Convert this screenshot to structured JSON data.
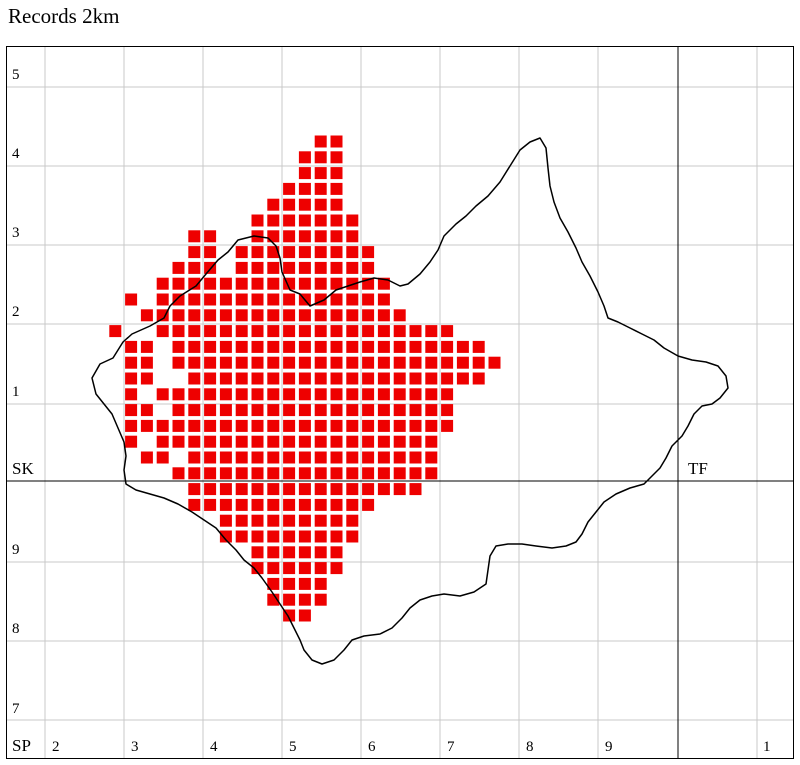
{
  "title": "Records 2km",
  "colors": {
    "record": "#ee0000",
    "grid": "#c8c8c8",
    "major_grid": "#000000",
    "boundary": "#000000"
  },
  "easting_labels": [
    "2",
    "3",
    "4",
    "5",
    "6",
    "7",
    "8",
    "9",
    "1"
  ],
  "northing_labels": [
    "5",
    "4",
    "3",
    "2",
    "1",
    "9",
    "8",
    "7"
  ],
  "zone_labels": {
    "sk": "SK",
    "tf": "TF",
    "sp": "SP"
  },
  "records_grid": [
    "..............EE..........",
    ".............EEE..........",
    ".............EEE..........",
    "............EEEE..........",
    "...........EEEEE..........",
    "..........EEEEEEE.........",
    "......EE..EEEEEEE.........",
    "......EE.EEEEEEEEE........",
    ".....EEE.EEEEEEEEE........",
    "....EEEEEEEEEEEEEEE.......",
    "..E.EEEEEEEEEEEEEEE.......",
    "...EEEEEEEEEEEEEEEEE......",
    ".E..EEEEEEEEEEEEEEEEEEE...",
    "..EE.EEEEEEEEEEEEEEEEEEEE.",
    "..EE.EEEEEEEEEEEEEEEEEEEEE",
    "..EE..EEEEEEEEEEEEEEEEEEE.",
    "..E.EEEEEEEEEEEEEEEEEEE...",
    "..EE.EEEEEEEEEEEEEEEEEE...",
    "..EEEEEEEEEEEEEEEEEEEEE...",
    "..E.EEEEEEEEEEEEEEEEEE....",
    "...EE.EEEEEEEEEEEEEEEE....",
    ".....EEEEEEEEEEEEEEEEE....",
    "......EEEEEEEEEEEEEEE.....",
    "......EEEEEEEEEEEE........",
    "........EEEEEEEEE.........",
    "........EEEEEEEEE.........",
    "..........EEEEEE..........",
    "..........EEEEEE..........",
    "...........EEEE...........",
    "...........EEEE...........",
    "............EE............"
  ]
}
